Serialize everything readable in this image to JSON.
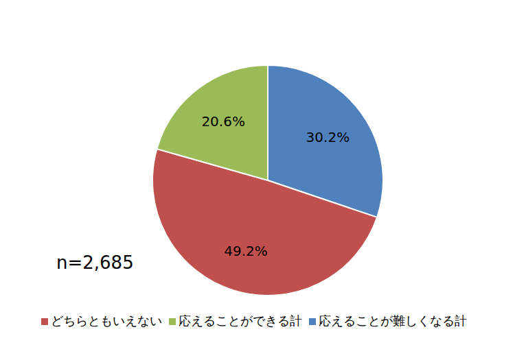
{
  "chart_data": {
    "type": "pie",
    "categories": [
      "応えることが難しくなる計",
      "どちらともいえない",
      "応えることができる計"
    ],
    "values": [
      30.2,
      49.2,
      20.6
    ],
    "value_labels": [
      "30.2%",
      "49.2%",
      "20.6%"
    ],
    "colors": [
      "#4f81bd",
      "#c0504d",
      "#9bbb59"
    ],
    "data_labels": true,
    "legend": "bottom",
    "annotations": [
      "n=2,685"
    ]
  }
}
